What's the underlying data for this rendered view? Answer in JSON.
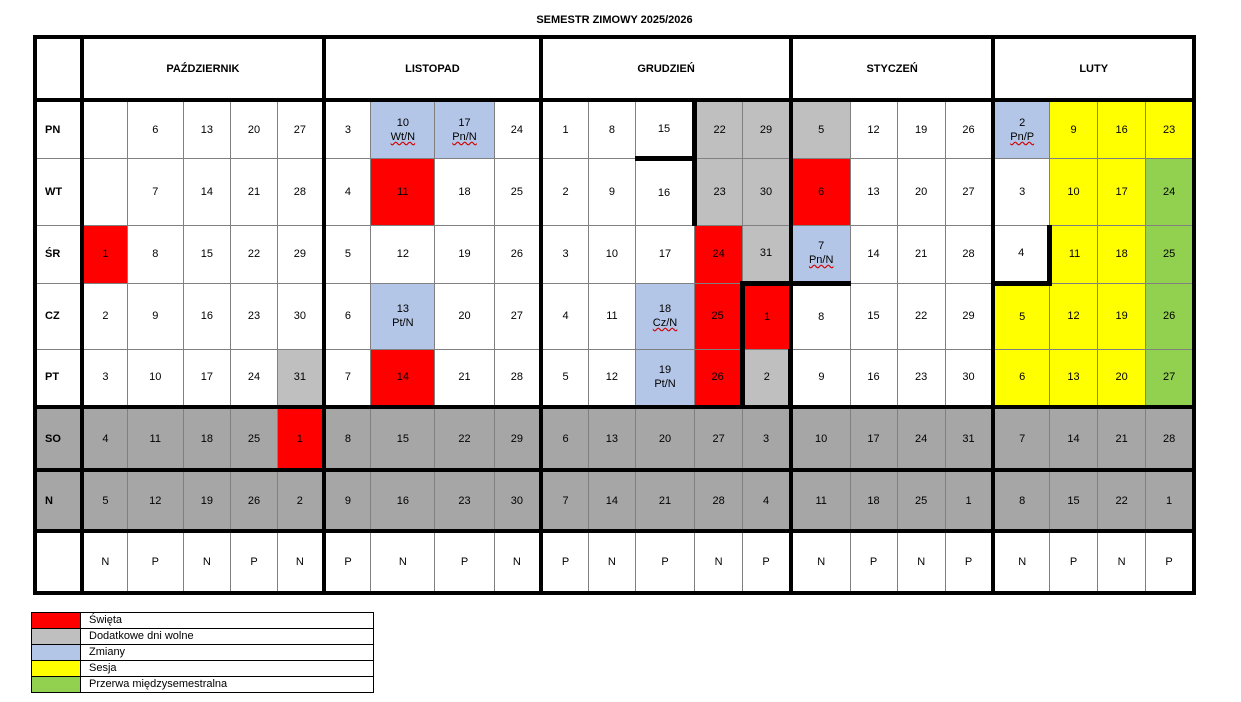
{
  "title": "SEMESTR ZIMOWY 2025/2026",
  "months": [
    "PAŹDZIERNIK",
    "LISTOPAD",
    "GRUDZIEŃ",
    "STYCZEŃ",
    "LUTY"
  ],
  "day_labels": [
    "PN",
    "WT",
    "ŚR",
    "CZ",
    "PT",
    "SO",
    "N"
  ],
  "colors": {
    "red": "#ff0000",
    "light_gray": "#bfbfbf",
    "blue": "#b4c6e7",
    "yellow": "#ffff00",
    "green": "#92d050",
    "dark_gray": "#a6a6a6"
  },
  "rows": {
    "pn": [
      "",
      "6",
      "13",
      "20",
      "27",
      "3",
      "10",
      "17",
      "24",
      "1",
      "8",
      "15",
      "22",
      "29",
      "5",
      "12",
      "19",
      "26",
      "2",
      "9",
      "16",
      "23"
    ],
    "wt": [
      "",
      "7",
      "14",
      "21",
      "28",
      "4",
      "11",
      "18",
      "25",
      "2",
      "9",
      "16",
      "23",
      "30",
      "6",
      "13",
      "20",
      "27",
      "3",
      "10",
      "17",
      "24"
    ],
    "sr": [
      "1",
      "8",
      "15",
      "22",
      "29",
      "5",
      "12",
      "19",
      "26",
      "3",
      "10",
      "17",
      "24",
      "31",
      "7",
      "14",
      "21",
      "28",
      "4",
      "11",
      "18",
      "25"
    ],
    "cz": [
      "2",
      "9",
      "16",
      "23",
      "30",
      "6",
      "13",
      "20",
      "27",
      "4",
      "11",
      "18",
      "25",
      "1",
      "8",
      "15",
      "22",
      "29",
      "5",
      "12",
      "19",
      "26"
    ],
    "pt": [
      "3",
      "10",
      "17",
      "24",
      "31",
      "7",
      "14",
      "21",
      "28",
      "5",
      "12",
      "19",
      "26",
      "2",
      "9",
      "16",
      "23",
      "30",
      "6",
      "13",
      "20",
      "27"
    ],
    "so": [
      "4",
      "11",
      "18",
      "25",
      "1",
      "8",
      "15",
      "22",
      "29",
      "6",
      "13",
      "20",
      "27",
      "3",
      "10",
      "17",
      "24",
      "31",
      "7",
      "14",
      "21",
      "28"
    ],
    "n": [
      "5",
      "12",
      "19",
      "26",
      "2",
      "9",
      "16",
      "23",
      "30",
      "7",
      "14",
      "21",
      "28",
      "4",
      "11",
      "18",
      "25",
      "1",
      "8",
      "15",
      "22",
      "1"
    ],
    "parity": [
      "N",
      "P",
      "N",
      "P",
      "N",
      "P",
      "N",
      "P",
      "N",
      "P",
      "N",
      "P",
      "N",
      "P",
      "N",
      "P",
      "N",
      "P",
      "N",
      "P",
      "N",
      "P"
    ]
  },
  "changes": {
    "nov10": "Wt/N",
    "nov17": "Pn/N",
    "nov13": "Pt/N",
    "dec18": "Cz/N",
    "dec19": "Pt/N",
    "jan7": "Pn/N",
    "feb2": "Pn/P"
  },
  "legend": [
    {
      "label": "Święta",
      "color": "#ff0000"
    },
    {
      "label": "Dodatkowe dni wolne",
      "color": "#bfbfbf"
    },
    {
      "label": "Zmiany",
      "color": "#b4c6e7"
    },
    {
      "label": "Sesja",
      "color": "#ffff00"
    },
    {
      "label": "Przerwa międzysemestralna",
      "color": "#92d050"
    }
  ]
}
